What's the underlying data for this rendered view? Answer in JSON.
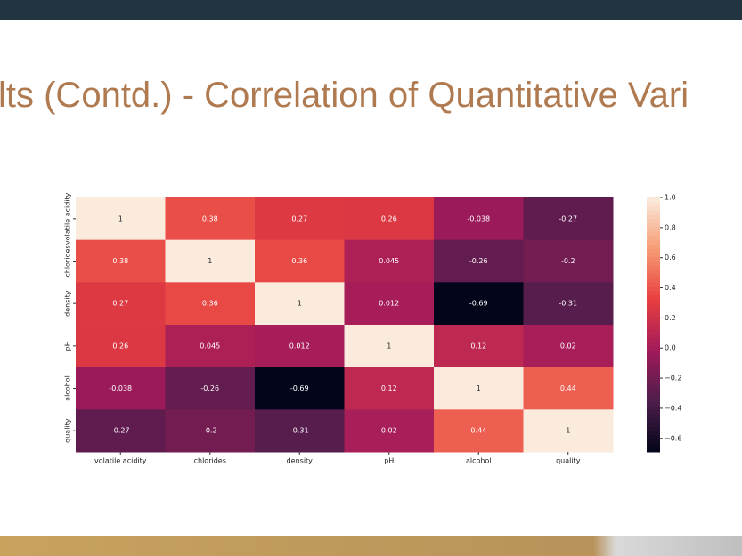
{
  "chart_data": {
    "type": "heatmap",
    "title": "lts (Contd.) - Correlation of Quantitative Vari",
    "categories": [
      "volatile acidity",
      "chlorides",
      "density",
      "pH",
      "alcohol",
      "quality"
    ],
    "values": [
      [
        1,
        0.38,
        0.27,
        0.26,
        -0.038,
        -0.27
      ],
      [
        0.38,
        1,
        0.36,
        0.045,
        -0.26,
        -0.2
      ],
      [
        0.27,
        0.36,
        1,
        0.012,
        -0.69,
        -0.31
      ],
      [
        0.26,
        0.045,
        0.012,
        1,
        0.12,
        0.02
      ],
      [
        -0.038,
        -0.26,
        -0.69,
        0.12,
        1,
        0.44
      ],
      [
        -0.27,
        -0.2,
        -0.31,
        0.02,
        0.44,
        1
      ]
    ],
    "zlim": [
      -0.69,
      1
    ],
    "zticks": [
      {
        "value": 1,
        "label": "1.0"
      },
      0.8,
      0.6,
      0.4,
      0.2,
      {
        "value": 0,
        "label": "0.0"
      },
      {
        "value": -0.2,
        "label": "−0.2"
      },
      {
        "value": -0.4,
        "label": "−0.4"
      },
      {
        "value": -0.6,
        "label": "−0.6"
      }
    ]
  }
}
